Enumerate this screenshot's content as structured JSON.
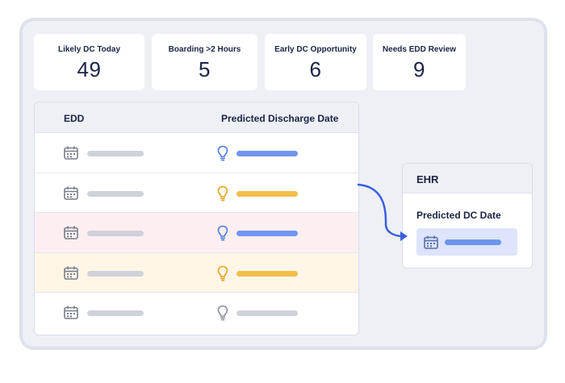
{
  "stats": [
    {
      "label": "Likely DC Today",
      "value": "49"
    },
    {
      "label": "Boarding >2 Hours",
      "value": "5"
    },
    {
      "label": "Early DC Opportunity",
      "value": "6"
    },
    {
      "label": "Needs EDD Review",
      "value": "9"
    }
  ],
  "table": {
    "col_edd": "EDD",
    "col_predicted": "Predicted Discharge Date",
    "rows": [
      {
        "status": "normal",
        "icon": "lightbulb-icon",
        "bulb_color": "#4f7ce6",
        "bar_color": "#6f95ee"
      },
      {
        "status": "normal",
        "icon": "lightbulb-icon",
        "bulb_color": "#e7a21a",
        "bar_color": "#f2bd4a"
      },
      {
        "status": "flagged-pink",
        "icon": "lightbulb-icon",
        "bulb_color": "#4f7ce6",
        "bar_color": "#6f95ee"
      },
      {
        "status": "flagged-cream",
        "icon": "lightbulb-icon",
        "bulb_color": "#e7a21a",
        "bar_color": "#f2bd4a"
      },
      {
        "status": "normal",
        "icon": "lightbulb-icon",
        "bulb_color": "#8a8f9c",
        "bar_color": "#cfd2da"
      }
    ]
  },
  "ehr": {
    "title": "EHR",
    "field_label": "Predicted DC Date"
  },
  "colors": {
    "accent_blue": "#3b5fe0",
    "predict_blue": "#6f95ee",
    "predict_amber": "#f2bd4a",
    "row_pink": "#fdeff1",
    "row_cream": "#fff6e8"
  }
}
